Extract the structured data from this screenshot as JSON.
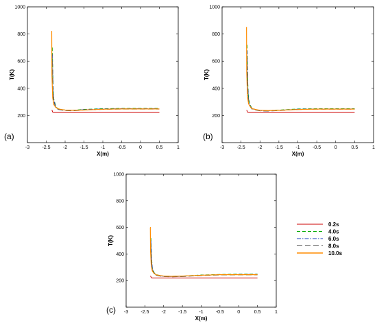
{
  "figure": {
    "legend": {
      "entries": [
        {
          "label": "0.2s",
          "color": "#cc0000",
          "dash": "solid"
        },
        {
          "label": "4.0s",
          "color": "#00aa00",
          "dash": "dashed"
        },
        {
          "label": "6.0s",
          "color": "#1f3fbf",
          "dash": "dashdot"
        },
        {
          "label": "8.0s",
          "color": "#555555",
          "dash": "longdash"
        },
        {
          "label": "10.0s",
          "color": "#ff8c00",
          "dash": "solid"
        }
      ]
    }
  },
  "chart_data": [
    {
      "panel": "(a)",
      "type": "line",
      "xlabel": "X(m)",
      "ylabel": "T(K)",
      "xlim": [
        -3,
        1
      ],
      "ylim": [
        0,
        1000
      ],
      "xticks": [
        -3,
        -2.5,
        -2,
        -1.5,
        -1,
        -0.5,
        0,
        0.5,
        1
      ],
      "xtick_labels": [
        "-3",
        "-2.5",
        "-2",
        "-1.5",
        "-1",
        "-0.5",
        "0",
        "0.5",
        "1"
      ],
      "yticks": [
        0,
        200,
        400,
        600,
        800,
        1000
      ],
      "ytick_labels": [
        "0",
        "200",
        "400",
        "600",
        "800",
        "1000"
      ],
      "grid": false,
      "series": [
        {
          "name": "0.2s",
          "x": [
            -2.35,
            -2.33,
            -2.3,
            -2.2,
            -2.0,
            -1.5,
            -1.0,
            -0.5,
            0,
            0.5
          ],
          "y": [
            240,
            225,
            222,
            222,
            222,
            222,
            222,
            222,
            222,
            222
          ]
        },
        {
          "name": "4.0s",
          "x": [
            -2.34,
            -2.32,
            -2.3,
            -2.25,
            -2.2,
            -2.1,
            -2.0,
            -1.8,
            -1.5,
            -1.0,
            -0.5,
            0,
            0.5
          ],
          "y": [
            700,
            420,
            320,
            270,
            250,
            244,
            240,
            238,
            245,
            250,
            252,
            252,
            252
          ]
        },
        {
          "name": "6.0s",
          "x": [
            -2.34,
            -2.32,
            -2.3,
            -2.25,
            -2.2,
            -2.1,
            -2.0,
            -1.8,
            -1.5,
            -1.0,
            -0.5,
            0,
            0.5
          ],
          "y": [
            650,
            400,
            310,
            265,
            248,
            242,
            238,
            236,
            243,
            248,
            250,
            250,
            250
          ]
        },
        {
          "name": "8.0s",
          "x": [
            -2.34,
            -2.32,
            -2.3,
            -2.25,
            -2.2,
            -2.1,
            -2.0,
            -1.8,
            -1.5,
            -1.0,
            -0.5,
            0,
            0.5
          ],
          "y": [
            600,
            380,
            300,
            260,
            245,
            240,
            236,
            234,
            240,
            245,
            247,
            247,
            247
          ]
        },
        {
          "name": "10.0s",
          "x": [
            -2.36,
            -2.355,
            -2.35,
            -2.33,
            -2.3,
            -2.25,
            -2.2,
            -2.1,
            -2.0,
            -1.8,
            -1.5,
            -1.0,
            -0.5,
            0,
            0.5
          ],
          "y": [
            820,
            820,
            500,
            330,
            280,
            260,
            250,
            244,
            240,
            238,
            240,
            246,
            248,
            248,
            248
          ]
        }
      ]
    },
    {
      "panel": "(b)",
      "type": "line",
      "xlabel": "X(m)",
      "ylabel": "T(K)",
      "xlim": [
        -3,
        1
      ],
      "ylim": [
        0,
        1000
      ],
      "xticks": [
        -3,
        -2.5,
        -2,
        -1.5,
        -1,
        -0.5,
        0,
        0.5,
        1
      ],
      "xtick_labels": [
        "-3",
        "-2.5",
        "-2",
        "-1.5",
        "-1",
        "-0.5",
        "0",
        "0.5",
        "1"
      ],
      "yticks": [
        0,
        200,
        400,
        600,
        800,
        1000
      ],
      "ytick_labels": [
        "0",
        "200",
        "400",
        "600",
        "800",
        "1000"
      ],
      "grid": false,
      "series": [
        {
          "name": "0.2s",
          "x": [
            -2.35,
            -2.33,
            -2.3,
            -2.2,
            -2.0,
            -1.5,
            -1.0,
            -0.5,
            0,
            0.5
          ],
          "y": [
            240,
            225,
            222,
            222,
            222,
            222,
            222,
            222,
            222,
            222
          ]
        },
        {
          "name": "4.0s",
          "x": [
            -2.34,
            -2.32,
            -2.3,
            -2.25,
            -2.2,
            -2.1,
            -2.0,
            -1.8,
            -1.5,
            -1.0,
            -0.5,
            0,
            0.5
          ],
          "y": [
            720,
            430,
            320,
            270,
            250,
            243,
            238,
            236,
            240,
            248,
            250,
            250,
            250
          ]
        },
        {
          "name": "6.0s",
          "x": [
            -2.34,
            -2.32,
            -2.3,
            -2.25,
            -2.2,
            -2.1,
            -2.0,
            -1.8,
            -1.5,
            -1.0,
            -0.5,
            0,
            0.5
          ],
          "y": [
            680,
            410,
            310,
            265,
            248,
            241,
            236,
            234,
            238,
            246,
            248,
            248,
            248
          ]
        },
        {
          "name": "8.0s",
          "x": [
            -2.34,
            -2.32,
            -2.3,
            -2.25,
            -2.2,
            -2.1,
            -2.0,
            -1.8,
            -1.5,
            -1.0,
            -0.5,
            0,
            0.5
          ],
          "y": [
            640,
            390,
            300,
            260,
            245,
            239,
            234,
            232,
            236,
            244,
            246,
            246,
            246
          ]
        },
        {
          "name": "10.0s",
          "x": [
            -2.36,
            -2.355,
            -2.35,
            -2.33,
            -2.3,
            -2.25,
            -2.2,
            -2.1,
            -2.0,
            -1.8,
            -1.5,
            -1.0,
            -0.5,
            0,
            0.5
          ],
          "y": [
            850,
            850,
            520,
            340,
            285,
            262,
            250,
            243,
            238,
            236,
            238,
            244,
            247,
            247,
            247
          ]
        }
      ]
    },
    {
      "panel": "(c)",
      "type": "line",
      "xlabel": "X(m)",
      "ylabel": "T(K)",
      "xlim": [
        -3,
        1
      ],
      "ylim": [
        0,
        1000
      ],
      "xticks": [
        -3,
        -2.5,
        -2,
        -1.5,
        -1,
        -0.5,
        0,
        0.5,
        1
      ],
      "xtick_labels": [
        "-3",
        "-2.5",
        "-2",
        "-1.5",
        "-1",
        "-0.5",
        "0",
        "0.5",
        "1"
      ],
      "yticks": [
        0,
        200,
        400,
        600,
        800,
        1000
      ],
      "ytick_labels": [
        "0",
        "200",
        "400",
        "600",
        "800",
        "1000"
      ],
      "grid": false,
      "series": [
        {
          "name": "0.2s",
          "x": [
            -2.35,
            -2.33,
            -2.3,
            -2.2,
            -2.0,
            -1.5,
            -1.0,
            -0.5,
            0,
            0.5
          ],
          "y": [
            235,
            222,
            220,
            220,
            220,
            220,
            220,
            220,
            220,
            220
          ]
        },
        {
          "name": "4.0s",
          "x": [
            -2.34,
            -2.32,
            -2.3,
            -2.25,
            -2.2,
            -2.1,
            -2.0,
            -1.8,
            -1.5,
            -1.0,
            -0.5,
            0,
            0.5
          ],
          "y": [
            520,
            360,
            290,
            258,
            245,
            238,
            234,
            232,
            234,
            242,
            246,
            248,
            248
          ]
        },
        {
          "name": "6.0s",
          "x": [
            -2.34,
            -2.32,
            -2.3,
            -2.25,
            -2.2,
            -2.1,
            -2.0,
            -1.8,
            -1.5,
            -1.0,
            -0.5,
            0,
            0.5
          ],
          "y": [
            500,
            350,
            285,
            255,
            243,
            236,
            232,
            230,
            232,
            240,
            244,
            246,
            246
          ]
        },
        {
          "name": "8.0s",
          "x": [
            -2.34,
            -2.32,
            -2.3,
            -2.25,
            -2.2,
            -2.1,
            -2.0,
            -1.8,
            -1.5,
            -1.0,
            -0.5,
            0,
            0.5
          ],
          "y": [
            480,
            340,
            280,
            252,
            240,
            234,
            230,
            228,
            230,
            238,
            242,
            243,
            243
          ]
        },
        {
          "name": "10.0s",
          "x": [
            -2.36,
            -2.355,
            -2.35,
            -2.33,
            -2.3,
            -2.25,
            -2.2,
            -2.1,
            -2.0,
            -1.8,
            -1.5,
            -1.0,
            -0.5,
            0,
            0.5
          ],
          "y": [
            600,
            600,
            420,
            310,
            270,
            252,
            244,
            238,
            234,
            232,
            234,
            240,
            244,
            244,
            244
          ]
        }
      ]
    }
  ]
}
